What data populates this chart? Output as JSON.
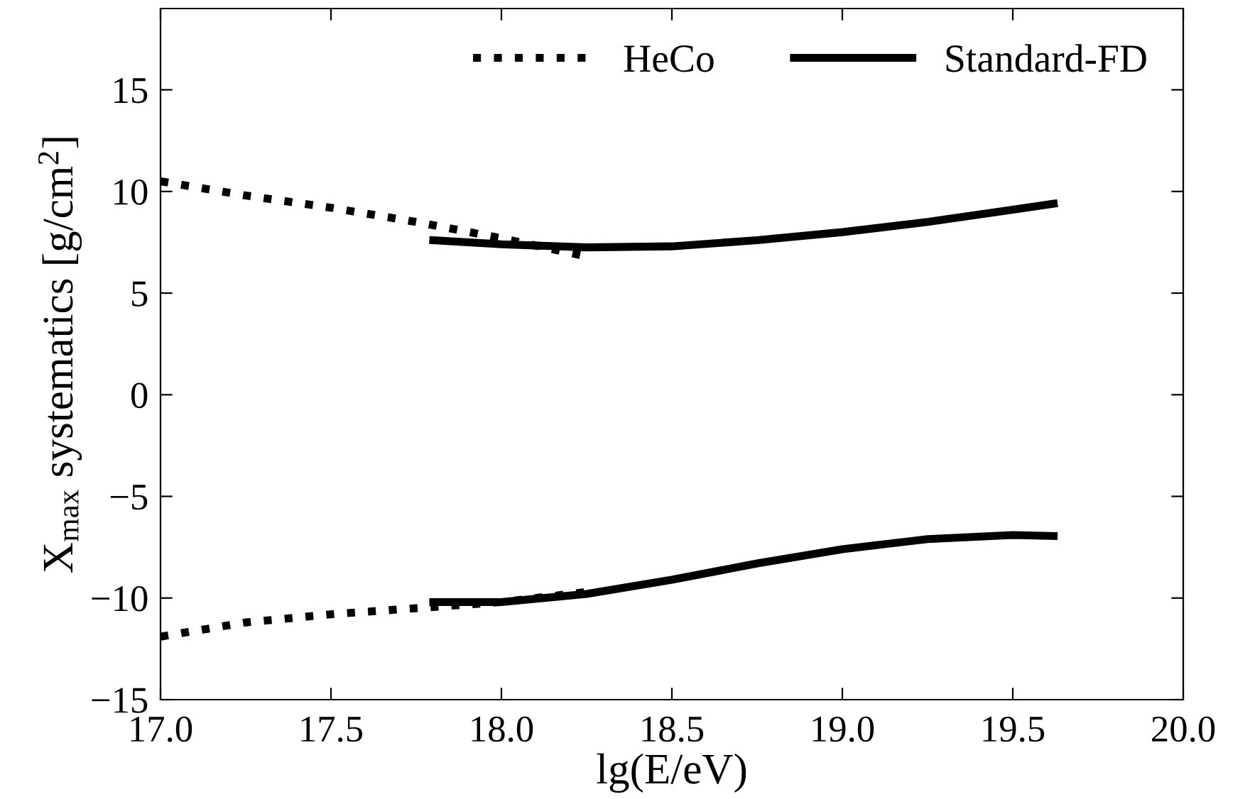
{
  "chart_data": {
    "type": "line",
    "xlabel": "lg(E/eV)",
    "ylabel": "X$_{max}$ systematics [g/cm$^{2}$]",
    "xlim": [
      17.0,
      20.0
    ],
    "ylim": [
      -15,
      19
    ],
    "xticks": [
      {
        "value": 17.0,
        "label": "17.0"
      },
      {
        "value": 17.5,
        "label": "17.5"
      },
      {
        "value": 18.0,
        "label": "18.0"
      },
      {
        "value": 18.5,
        "label": "18.5"
      },
      {
        "value": 19.0,
        "label": "19.0"
      },
      {
        "value": 19.5,
        "label": "19.5"
      },
      {
        "value": 20.0,
        "label": "20.0"
      }
    ],
    "yticks": [
      {
        "value": -15,
        "label": "−15"
      },
      {
        "value": -10,
        "label": "−10"
      },
      {
        "value": -5,
        "label": "−5"
      },
      0,
      5,
      10,
      15
    ],
    "grid": false,
    "legend": "top right",
    "marker": "none",
    "series": [
      {
        "name": "HeCo",
        "color": "#000000",
        "line_style": "dotted",
        "x": [
          17.0,
          17.25,
          17.5,
          17.75,
          18.0,
          18.25
        ],
        "values": [
          10.5,
          9.8,
          9.2,
          8.5,
          7.7,
          6.8
        ]
      },
      {
        "name": "Standard-FD",
        "color": "#000000",
        "line_style": "solid",
        "x": [
          17.8,
          18.0,
          18.25,
          18.5,
          18.75,
          19.0,
          19.25,
          19.5,
          19.62
        ],
        "values": [
          7.6,
          7.4,
          7.25,
          7.3,
          7.6,
          8.0,
          8.5,
          9.1,
          9.4
        ]
      },
      {
        "color": "#000000",
        "line_style": "dotted",
        "x": [
          17.0,
          17.25,
          17.5,
          17.75,
          18.0,
          18.25
        ],
        "values": [
          -11.9,
          -11.2,
          -10.8,
          -10.5,
          -10.2,
          -9.7
        ]
      },
      {
        "color": "#000000",
        "line_style": "solid",
        "x": [
          17.8,
          18.0,
          18.25,
          18.5,
          18.75,
          19.0,
          19.25,
          19.5,
          19.62
        ],
        "values": [
          -10.2,
          -10.2,
          -9.8,
          -9.1,
          -8.3,
          -7.6,
          -7.1,
          -6.9,
          -6.95
        ]
      }
    ]
  }
}
